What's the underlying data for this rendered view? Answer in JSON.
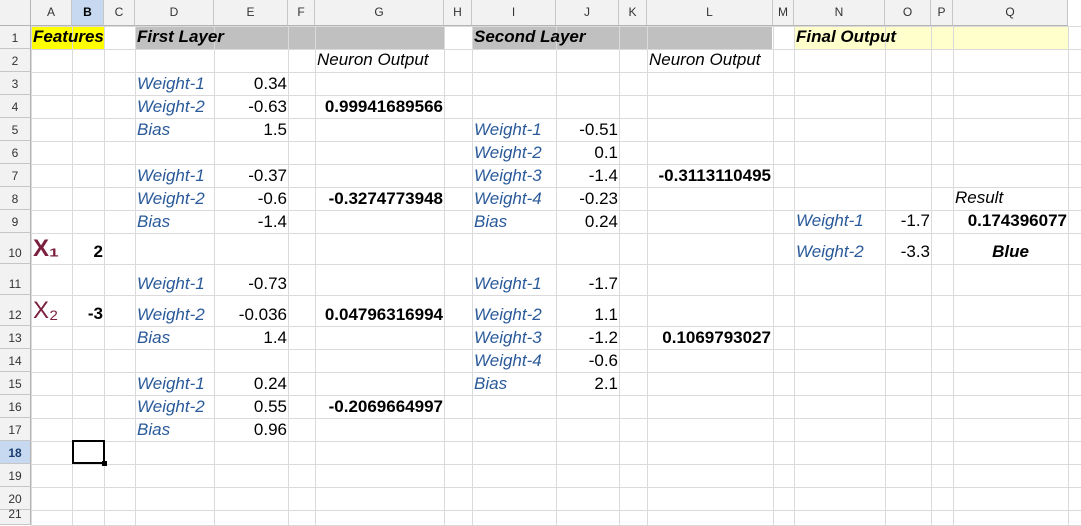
{
  "app": {
    "selected_cell": "B18"
  },
  "columns": [
    "A",
    "B",
    "C",
    "D",
    "E",
    "F",
    "G",
    "H",
    "I",
    "J",
    "K",
    "L",
    "M",
    "N",
    "O",
    "P",
    "Q"
  ],
  "rows": [
    "1",
    "2",
    "3",
    "4",
    "5",
    "6",
    "7",
    "8",
    "9",
    "10",
    "11",
    "12",
    "13",
    "14",
    "15",
    "16",
    "17",
    "18",
    "19",
    "20",
    "21"
  ],
  "colors": {
    "features_fill": "#ffff00",
    "layer_header_fill": "#c0c0c0",
    "final_fill": "#ffffcc",
    "label_text": "#2a5a9a",
    "x_symbol": "#7a1f3d"
  },
  "features": {
    "header": "Features",
    "x1_label": "X₁",
    "x1_value": "2",
    "x2_label": "X₂",
    "x2_value": "-3"
  },
  "first_layer": {
    "header": "First Layer",
    "neuron_output_label": "Neuron Output",
    "rows": [
      {
        "label": "Weight-1",
        "value": "0.34"
      },
      {
        "label": "Weight-2",
        "value": "-0.63"
      },
      {
        "label": "Bias",
        "value": "1.5"
      },
      {
        "label": "Weight-1",
        "value": "-0.37"
      },
      {
        "label": "Weight-2",
        "value": "-0.6"
      },
      {
        "label": "Bias",
        "value": "-1.4"
      },
      {
        "label": "Weight-1",
        "value": "-0.73"
      },
      {
        "label": "Weight-2",
        "value": "-0.036"
      },
      {
        "label": "Bias",
        "value": "1.4"
      },
      {
        "label": "Weight-1",
        "value": "0.24"
      },
      {
        "label": "Weight-2",
        "value": "0.55"
      },
      {
        "label": "Bias",
        "value": "0.96"
      }
    ],
    "outputs": [
      "0.99941689566",
      "-0.3274773948",
      "0.04796316994",
      "-0.2069664997"
    ]
  },
  "second_layer": {
    "header": "Second Layer",
    "neuron_output_label": "Neuron Output",
    "rows": [
      {
        "label": "Weight-1",
        "value": "-0.51"
      },
      {
        "label": "Weight-2",
        "value": "0.1"
      },
      {
        "label": "Weight-3",
        "value": "-1.4"
      },
      {
        "label": "Weight-4",
        "value": "-0.23"
      },
      {
        "label": "Bias",
        "value": "0.24"
      },
      {
        "label": "Weight-1",
        "value": "-1.7"
      },
      {
        "label": "Weight-2",
        "value": "1.1"
      },
      {
        "label": "Weight-3",
        "value": "-1.2"
      },
      {
        "label": "Weight-4",
        "value": "-0.6"
      },
      {
        "label": "Bias",
        "value": "2.1"
      }
    ],
    "outputs": [
      "-0.3113110495",
      "0.1069793027"
    ]
  },
  "final_output": {
    "header": "Final Output",
    "result_label": "Result",
    "rows": [
      {
        "label": "Weight-1",
        "value": "-1.7"
      },
      {
        "label": "Weight-2",
        "value": "-3.3"
      }
    ],
    "result_value": "0.174396077",
    "result_class": "Blue"
  }
}
